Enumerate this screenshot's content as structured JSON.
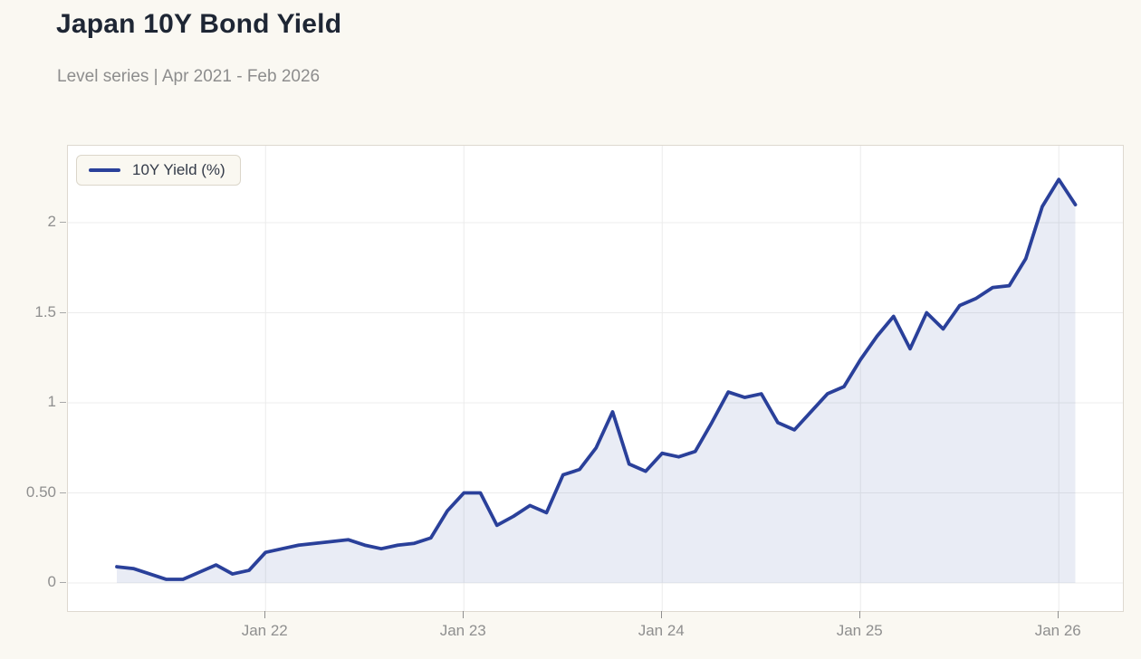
{
  "header": {
    "title": "Japan 10Y Bond Yield",
    "subtitle": "Level series | Apr 2021 - Feb 2026"
  },
  "legend": {
    "label": "10Y Yield (%)"
  },
  "colors": {
    "page_background": "#faf8f2",
    "plot_background": "#ffffff",
    "plot_border": "#ded9d0",
    "gridline": "#ececec",
    "tick_label": "#8f8f8f",
    "title_text": "#1e2634",
    "subtitle_text": "#8d8d8d",
    "line": "#2a409a",
    "area_fill": "rgba(42,64,154,0.10)"
  },
  "chart_data": {
    "type": "line",
    "title": "Japan 10Y Bond Yield",
    "subtitle": "Level series | Apr 2021 - Feb 2026",
    "xlabel": "",
    "ylabel": "",
    "grid": true,
    "legend_position": "top-left",
    "area_fill_to_zero": true,
    "y_range": [
      -0.16,
      2.43
    ],
    "x_range_months": [
      "2021-01",
      "2026-05"
    ],
    "y_ticks": [
      {
        "label": "0",
        "value": 0.0
      },
      {
        "label": "0.50",
        "value": 0.5
      },
      {
        "label": "1",
        "value": 1.0
      },
      {
        "label": "1.5",
        "value": 1.5
      },
      {
        "label": "2",
        "value": 2.0
      }
    ],
    "x_ticks": [
      {
        "label": "Jan 22",
        "month_index": 9
      },
      {
        "label": "Jan 23",
        "month_index": 21
      },
      {
        "label": "Jan 24",
        "month_index": 33
      },
      {
        "label": "Jan 25",
        "month_index": 45
      },
      {
        "label": "Jan 26",
        "month_index": 57
      }
    ],
    "series": [
      {
        "name": "10Y Yield (%)",
        "color": "#2a409a",
        "fill": "rgba(42,64,154,0.10)",
        "x": [
          "2021-04",
          "2021-05",
          "2021-06",
          "2021-07",
          "2021-08",
          "2021-09",
          "2021-10",
          "2021-11",
          "2021-12",
          "2022-01",
          "2022-02",
          "2022-03",
          "2022-04",
          "2022-05",
          "2022-06",
          "2022-07",
          "2022-08",
          "2022-09",
          "2022-10",
          "2022-11",
          "2022-12",
          "2023-01",
          "2023-02",
          "2023-03",
          "2023-04",
          "2023-05",
          "2023-06",
          "2023-07",
          "2023-08",
          "2023-09",
          "2023-10",
          "2023-11",
          "2023-12",
          "2024-01",
          "2024-02",
          "2024-03",
          "2024-04",
          "2024-05",
          "2024-06",
          "2024-07",
          "2024-08",
          "2024-09",
          "2024-10",
          "2024-11",
          "2024-12",
          "2025-01",
          "2025-02",
          "2025-03",
          "2025-04",
          "2025-05",
          "2025-06",
          "2025-07",
          "2025-08",
          "2025-09",
          "2025-10",
          "2025-11",
          "2025-12",
          "2026-01",
          "2026-02"
        ],
        "values": [
          0.09,
          0.08,
          0.05,
          0.02,
          0.02,
          0.06,
          0.1,
          0.05,
          0.07,
          0.17,
          0.19,
          0.21,
          0.22,
          0.23,
          0.24,
          0.21,
          0.19,
          0.21,
          0.22,
          0.25,
          0.4,
          0.5,
          0.5,
          0.32,
          0.37,
          0.43,
          0.39,
          0.6,
          0.63,
          0.75,
          0.95,
          0.66,
          0.62,
          0.72,
          0.7,
          0.73,
          0.89,
          1.06,
          1.03,
          1.05,
          0.89,
          0.85,
          0.95,
          1.05,
          1.09,
          1.24,
          1.37,
          1.48,
          1.3,
          1.5,
          1.41,
          1.54,
          1.58,
          1.64,
          1.65,
          1.8,
          2.09,
          2.24,
          2.1
        ]
      }
    ]
  }
}
